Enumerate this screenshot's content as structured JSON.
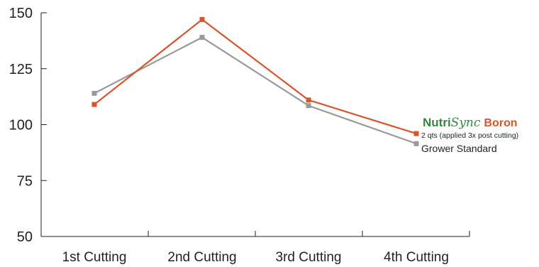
{
  "chart_data": {
    "type": "line",
    "categories": [
      "1st Cutting",
      "2nd Cutting",
      "3rd Cutting",
      "4th Cutting"
    ],
    "series": [
      {
        "name": "2 qts (applied 3x post cutting)",
        "values": [
          109,
          147,
          111,
          96
        ],
        "color": "#d9542b"
      },
      {
        "name": "Grower Standard",
        "values": [
          114,
          139,
          108.5,
          91.5
        ],
        "color": "#999999"
      }
    ],
    "y_ticks": [
      "150",
      "125",
      "100",
      "75",
      "50"
    ],
    "ylim": [
      50,
      150
    ],
    "grid": false,
    "legend_placement": "right",
    "legend_heading": {
      "part1": "Nutri",
      "part2": "Sync",
      "part3": "Boron"
    },
    "colors": {
      "green": "#2f8a3a",
      "orange": "#d9542b",
      "gray": "#999999",
      "axis": "#231f20"
    }
  }
}
